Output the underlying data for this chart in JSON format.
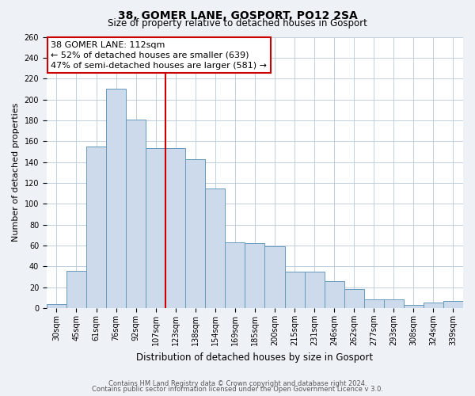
{
  "title": "38, GOMER LANE, GOSPORT, PO12 2SA",
  "subtitle": "Size of property relative to detached houses in Gosport",
  "xlabel": "Distribution of detached houses by size in Gosport",
  "ylabel": "Number of detached properties",
  "categories": [
    "30sqm",
    "45sqm",
    "61sqm",
    "76sqm",
    "92sqm",
    "107sqm",
    "123sqm",
    "138sqm",
    "154sqm",
    "169sqm",
    "185sqm",
    "200sqm",
    "215sqm",
    "231sqm",
    "246sqm",
    "262sqm",
    "277sqm",
    "293sqm",
    "308sqm",
    "324sqm",
    "339sqm"
  ],
  "values": [
    4,
    36,
    155,
    210,
    181,
    153,
    153,
    143,
    115,
    63,
    62,
    59,
    35,
    35,
    26,
    18,
    8,
    8,
    3,
    5,
    7
  ],
  "bar_color": "#ccdaeb",
  "bar_edge_color": "#6699bb",
  "vline_x": 6.0,
  "vline_color": "#cc0000",
  "ylim": [
    0,
    260
  ],
  "yticks": [
    0,
    20,
    40,
    60,
    80,
    100,
    120,
    140,
    160,
    180,
    200,
    220,
    240,
    260
  ],
  "annotation_title": "38 GOMER LANE: 112sqm",
  "annotation_line1": "← 52% of detached houses are smaller (639)",
  "annotation_line2": "47% of semi-detached houses are larger (581) →",
  "footer1": "Contains HM Land Registry data © Crown copyright and database right 2024.",
  "footer2": "Contains public sector information licensed under the Open Government Licence v 3.0.",
  "bg_color": "#eef2f7",
  "plot_bg_color": "#ffffff",
  "title_fontsize": 10,
  "subtitle_fontsize": 8.5,
  "ylabel_fontsize": 8,
  "xlabel_fontsize": 8.5,
  "tick_fontsize": 7,
  "ann_fontsize": 8,
  "footer_fontsize": 6
}
